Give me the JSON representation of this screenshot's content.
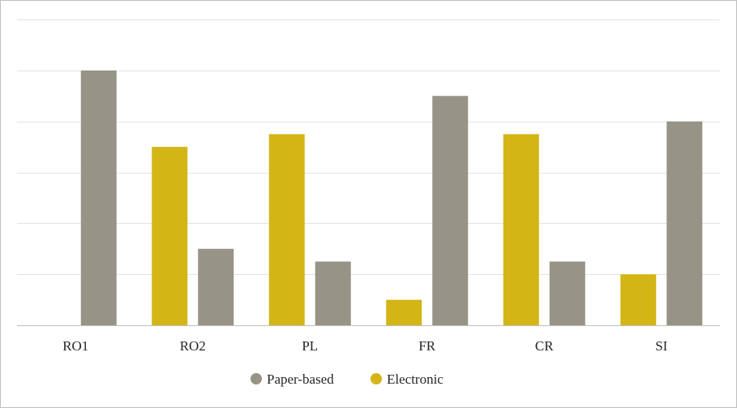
{
  "chart_data": {
    "type": "bar",
    "categories": [
      "RO1",
      "RO2",
      "PL",
      "FR",
      "CR",
      "SI"
    ],
    "series": [
      {
        "name": "Electronic",
        "values": [
          0,
          7,
          7.5,
          1,
          7.5,
          2
        ],
        "color": "#D4B516"
      },
      {
        "name": "Paper-based",
        "values": [
          10,
          3,
          2.5,
          9,
          2.5,
          8
        ],
        "color": "#979386"
      }
    ],
    "ylim": [
      0,
      12
    ],
    "y_gridlines": [
      0,
      2,
      4,
      6,
      8,
      10,
      12
    ],
    "y_tick_labels_shown": false,
    "grid": true,
    "legend": {
      "position": "bottom",
      "entries": [
        {
          "label": "Paper-based",
          "color": "#979386"
        },
        {
          "label": "Electronic",
          "color": "#D4B516"
        }
      ]
    },
    "title": "",
    "xlabel": "",
    "ylabel": ""
  }
}
